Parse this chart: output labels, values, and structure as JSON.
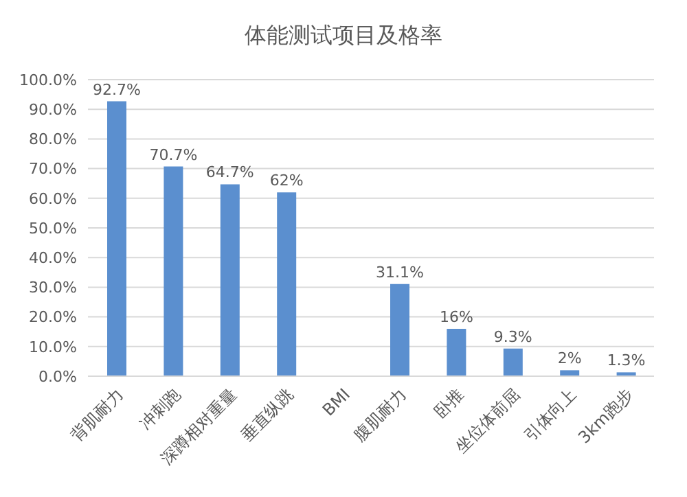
{
  "chart_data": {
    "type": "bar",
    "title": "体能测试项目及格率",
    "categories": [
      "背肌耐力",
      "冲刺跑",
      "深蹲相对重量",
      "垂直纵跳",
      "BMI",
      "腹肌耐力",
      "卧推",
      "坐位体前屈",
      "引体向上",
      "3km跑步"
    ],
    "values": [
      92.7,
      70.7,
      64.7,
      62,
      null,
      31.1,
      16,
      9.3,
      2,
      1.3
    ],
    "value_labels": [
      "92.7%",
      "70.7%",
      "64.7%",
      "62%",
      null,
      "31.1%",
      "16%",
      "9.3%",
      "2%",
      "1.3%"
    ],
    "color": "#5b8fcf",
    "ylim": [
      0,
      100
    ],
    "yticks": [
      {
        "value": 0,
        "label": "0.0%"
      },
      {
        "value": 10,
        "label": "10.0%"
      },
      {
        "value": 20,
        "label": "20.0%"
      },
      {
        "value": 30,
        "label": "30.0%"
      },
      {
        "value": 40,
        "label": "40.0%"
      },
      {
        "value": 50,
        "label": "50.0%"
      },
      {
        "value": 60,
        "label": "60.0%"
      },
      {
        "value": 70,
        "label": "70.0%"
      },
      {
        "value": 80,
        "label": "80.0%"
      },
      {
        "value": 90,
        "label": "90.0%"
      },
      {
        "value": 100,
        "label": "100.0%"
      }
    ],
    "grid": "y"
  }
}
